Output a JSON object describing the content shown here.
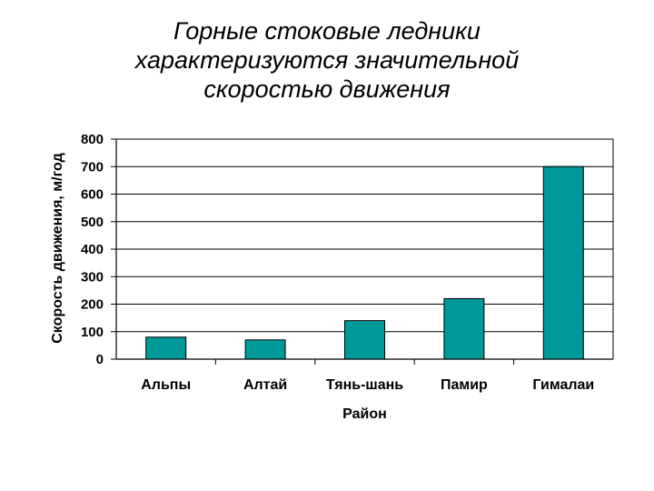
{
  "chart_data": {
    "type": "bar",
    "title_lines": [
      "Горные стоковые ледники",
      "характеризуются значительной",
      "скоростью движения"
    ],
    "xlabel": "Район",
    "ylabel": "Скорость движения, м/год",
    "categories": [
      "Альпы",
      "Алтай",
      "Тянь-шань",
      "Памир",
      "Гималаи"
    ],
    "values": [
      80,
      70,
      140,
      220,
      700
    ],
    "ylim": [
      0,
      800
    ],
    "yticks": [
      0,
      100,
      200,
      300,
      400,
      500,
      600,
      700,
      800
    ],
    "grid": true,
    "bar_color": "#009999",
    "bar_border_color": "#000000"
  }
}
